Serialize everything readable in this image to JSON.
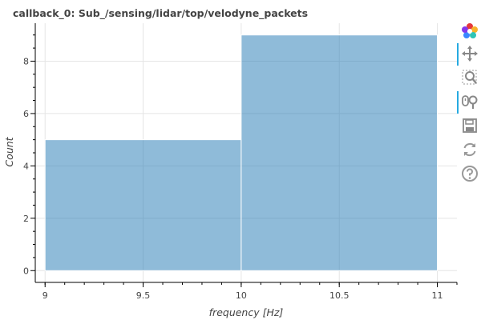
{
  "chart_data": {
    "type": "histogram",
    "title": "callback_0: Sub_/sensing/lidar/top/velodyne_packets",
    "xlabel": "frequency [Hz]",
    "ylabel": "Count",
    "bins": [
      {
        "left": 9,
        "right": 10,
        "count": 5
      },
      {
        "left": 10,
        "right": 11,
        "count": 9
      }
    ],
    "xlim": [
      8.95,
      11.1
    ],
    "ylim": [
      -0.45,
      9.45
    ],
    "x_ticks": [
      9,
      9.5,
      10,
      10.5,
      11
    ],
    "x_tick_labels": [
      "9",
      "9.5",
      "10",
      "10.5",
      "11"
    ],
    "y_ticks": [
      0,
      2,
      4,
      6,
      8
    ],
    "y_tick_labels": [
      "0",
      "2",
      "4",
      "6",
      "8"
    ],
    "grid": true,
    "colors": {
      "bar": "#1f77b4",
      "grid": "#e5e5e5",
      "text": "#444444"
    }
  },
  "toolbar": {
    "tools": [
      {
        "name": "bokeh-logo-icon",
        "active": false,
        "interactable": true
      },
      {
        "name": "pan-tool-icon",
        "active": true,
        "interactable": true
      },
      {
        "name": "box-zoom-tool-icon",
        "active": false,
        "interactable": true
      },
      {
        "name": "wheel-zoom-tool-icon",
        "active": true,
        "interactable": true
      },
      {
        "name": "save-tool-icon",
        "active": false,
        "interactable": true
      },
      {
        "name": "reset-tool-icon",
        "active": false,
        "interactable": true
      },
      {
        "name": "help-tool-icon",
        "active": false,
        "interactable": true
      }
    ]
  }
}
